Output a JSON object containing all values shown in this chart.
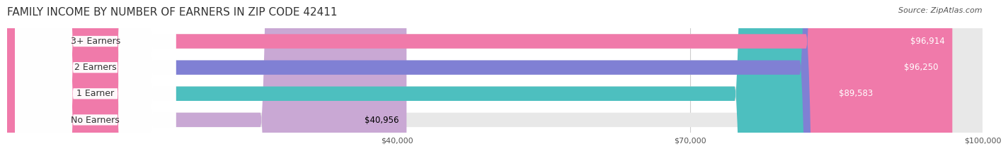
{
  "title": "FAMILY INCOME BY NUMBER OF EARNERS IN ZIP CODE 42411",
  "source": "Source: ZipAtlas.com",
  "categories": [
    "No Earners",
    "1 Earner",
    "2 Earners",
    "3+ Earners"
  ],
  "values": [
    40956,
    89583,
    96250,
    96914
  ],
  "bar_colors": [
    "#c9a8d4",
    "#4dbfbf",
    "#8080d4",
    "#f07aaa"
  ],
  "bar_bg_color": "#f0f0f0",
  "label_colors": [
    "#000000",
    "#ffffff",
    "#ffffff",
    "#ffffff"
  ],
  "value_colors": [
    "#000000",
    "#ffffff",
    "#ffffff",
    "#ffffff"
  ],
  "xlim_min": 0,
  "xlim_max": 100000,
  "xticks": [
    40000,
    70000,
    100000
  ],
  "xtick_labels": [
    "$40,000",
    "$70,000",
    "$100,000"
  ],
  "background_color": "#ffffff",
  "bar_height": 0.55,
  "title_fontsize": 11,
  "label_fontsize": 9,
  "value_fontsize": 8.5,
  "source_fontsize": 8
}
